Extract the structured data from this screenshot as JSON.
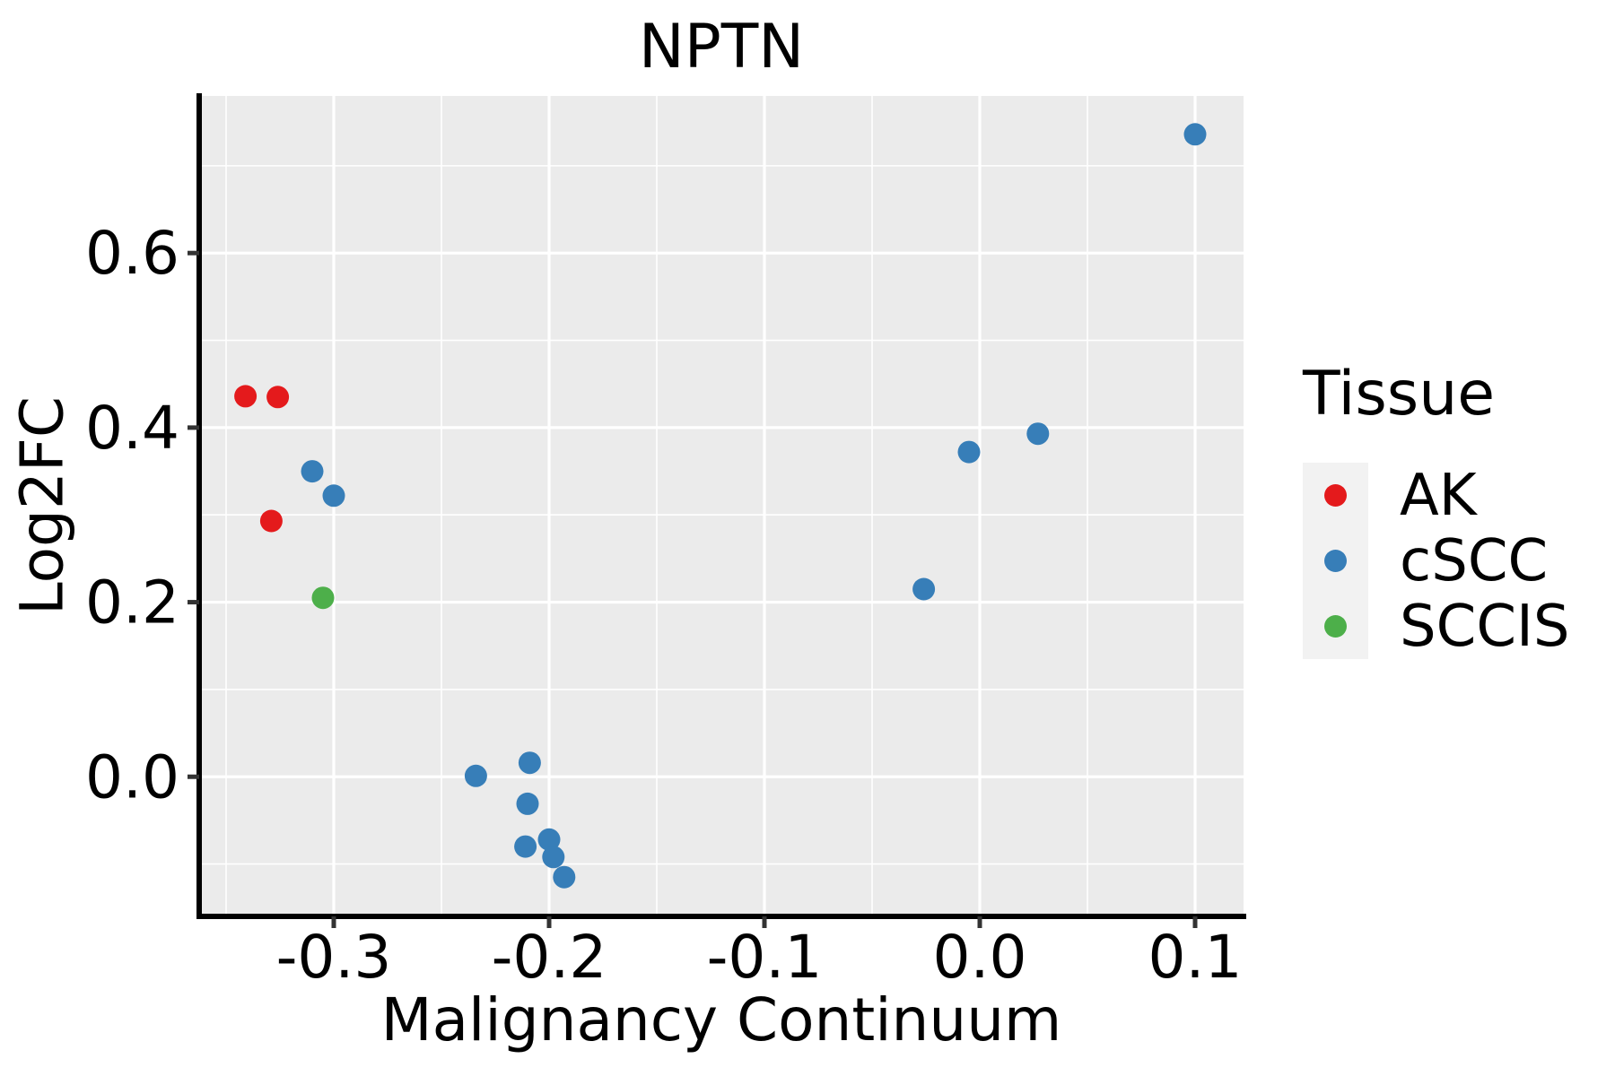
{
  "figure": {
    "title": "NPTN",
    "x_axis_label": "Malignancy Continuum",
    "y_axis_label": "Log2FC"
  },
  "legend": {
    "title": "Tissue",
    "items": [
      {
        "label": "AK",
        "color": "#E41A1C"
      },
      {
        "label": "cSCC",
        "color": "#377EB8"
      },
      {
        "label": "SCCIS",
        "color": "#4DAF4A"
      }
    ]
  },
  "style_colors": {
    "panel_background": "#EBEBEB",
    "gridline": "#FFFFFF",
    "axis_line": "#000000",
    "tick_mark": "#333333",
    "legend_key_background": "#F2F2F2"
  },
  "chart_data": {
    "type": "scatter",
    "title": "NPTN",
    "xlabel": "Malignancy Continuum",
    "ylabel": "Log2FC",
    "xlim": [
      -0.3625,
      0.1225
    ],
    "ylim": [
      -0.16,
      0.78
    ],
    "grid": true,
    "legend_position": "right",
    "x_major_ticks": [
      -0.3,
      -0.2,
      -0.1,
      0.0,
      0.1
    ],
    "x_tick_labels": [
      "-0.3",
      "-0.2",
      "-0.1",
      "0.0",
      "0.1"
    ],
    "x_minor_ticks": [
      -0.35,
      -0.25,
      -0.15,
      -0.05,
      0.05
    ],
    "y_major_ticks": [
      0.0,
      0.2,
      0.4,
      0.6
    ],
    "y_tick_labels": [
      "0.0",
      "0.2",
      "0.4",
      "0.6"
    ],
    "y_minor_ticks": [
      -0.1,
      0.1,
      0.3,
      0.5,
      0.7
    ],
    "point_radius": 12.5,
    "series": [
      {
        "name": "AK",
        "color": "#E41A1C",
        "points": [
          [
            -0.341,
            0.436
          ],
          [
            -0.326,
            0.435
          ],
          [
            -0.329,
            0.293
          ]
        ]
      },
      {
        "name": "cSCC",
        "color": "#377EB8",
        "points": [
          [
            -0.31,
            0.35
          ],
          [
            -0.3,
            0.322
          ],
          [
            -0.234,
            0.001
          ],
          [
            -0.209,
            0.016
          ],
          [
            -0.21,
            -0.031
          ],
          [
            -0.211,
            -0.08
          ],
          [
            -0.2,
            -0.072
          ],
          [
            -0.198,
            -0.092
          ],
          [
            -0.193,
            -0.115
          ],
          [
            -0.026,
            0.215
          ],
          [
            -0.005,
            0.372
          ],
          [
            0.027,
            0.393
          ],
          [
            0.1,
            0.736
          ]
        ]
      },
      {
        "name": "SCCIS",
        "color": "#4DAF4A",
        "points": [
          [
            -0.305,
            0.205
          ]
        ]
      }
    ]
  }
}
